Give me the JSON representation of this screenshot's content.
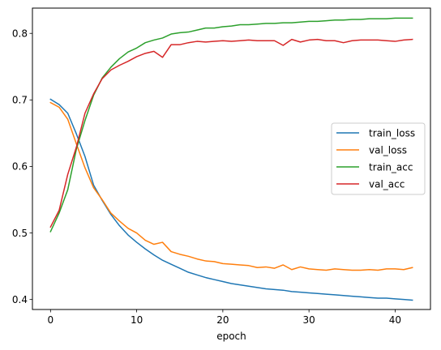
{
  "chart_data": {
    "type": "line",
    "title": "",
    "xlabel": "epoch",
    "ylabel": "",
    "xlim": [
      -2.1,
      44.1
    ],
    "ylim": [
      0.385,
      0.838
    ],
    "xticks": [
      0,
      10,
      20,
      30,
      40
    ],
    "yticks": [
      0.4,
      0.5,
      0.6,
      0.7,
      0.8
    ],
    "grid": false,
    "legend_position": "center-right",
    "x": [
      0,
      1,
      2,
      3,
      4,
      5,
      6,
      7,
      8,
      9,
      10,
      11,
      12,
      13,
      14,
      15,
      16,
      17,
      18,
      19,
      20,
      21,
      22,
      23,
      24,
      25,
      26,
      27,
      28,
      29,
      30,
      31,
      32,
      33,
      34,
      35,
      36,
      37,
      38,
      39,
      40,
      41,
      42
    ],
    "series": [
      {
        "name": "train_loss",
        "color": "#1f77b4",
        "values": [
          0.701,
          0.693,
          0.68,
          0.649,
          0.615,
          0.572,
          0.549,
          0.528,
          0.511,
          0.497,
          0.486,
          0.476,
          0.467,
          0.459,
          0.453,
          0.447,
          0.441,
          0.437,
          0.433,
          0.43,
          0.427,
          0.424,
          0.422,
          0.42,
          0.418,
          0.416,
          0.415,
          0.414,
          0.412,
          0.411,
          0.41,
          0.409,
          0.408,
          0.407,
          0.406,
          0.405,
          0.404,
          0.403,
          0.402,
          0.402,
          0.401,
          0.4,
          0.399
        ]
      },
      {
        "name": "val_loss",
        "color": "#ff7f0e",
        "values": [
          0.696,
          0.689,
          0.671,
          0.634,
          0.598,
          0.568,
          0.55,
          0.53,
          0.518,
          0.507,
          0.5,
          0.489,
          0.483,
          0.486,
          0.472,
          0.468,
          0.465,
          0.461,
          0.458,
          0.457,
          0.454,
          0.453,
          0.452,
          0.451,
          0.448,
          0.449,
          0.447,
          0.452,
          0.445,
          0.449,
          0.446,
          0.445,
          0.444,
          0.446,
          0.445,
          0.444,
          0.444,
          0.445,
          0.444,
          0.446,
          0.446,
          0.445,
          0.448
        ]
      },
      {
        "name": "train_acc",
        "color": "#2ca02c",
        "values": [
          0.502,
          0.53,
          0.565,
          0.626,
          0.669,
          0.707,
          0.733,
          0.749,
          0.762,
          0.772,
          0.778,
          0.786,
          0.79,
          0.793,
          0.799,
          0.801,
          0.802,
          0.805,
          0.808,
          0.808,
          0.81,
          0.811,
          0.813,
          0.813,
          0.814,
          0.815,
          0.815,
          0.816,
          0.816,
          0.817,
          0.818,
          0.818,
          0.819,
          0.82,
          0.82,
          0.821,
          0.821,
          0.822,
          0.822,
          0.822,
          0.823,
          0.823,
          0.823
        ]
      },
      {
        "name": "val_acc",
        "color": "#d62728",
        "values": [
          0.509,
          0.534,
          0.588,
          0.629,
          0.68,
          0.709,
          0.732,
          0.745,
          0.752,
          0.758,
          0.765,
          0.77,
          0.773,
          0.764,
          0.783,
          0.783,
          0.786,
          0.788,
          0.787,
          0.788,
          0.789,
          0.788,
          0.789,
          0.79,
          0.789,
          0.789,
          0.789,
          0.782,
          0.791,
          0.787,
          0.79,
          0.791,
          0.789,
          0.789,
          0.786,
          0.789,
          0.79,
          0.79,
          0.79,
          0.789,
          0.788,
          0.79,
          0.791
        ]
      }
    ]
  }
}
